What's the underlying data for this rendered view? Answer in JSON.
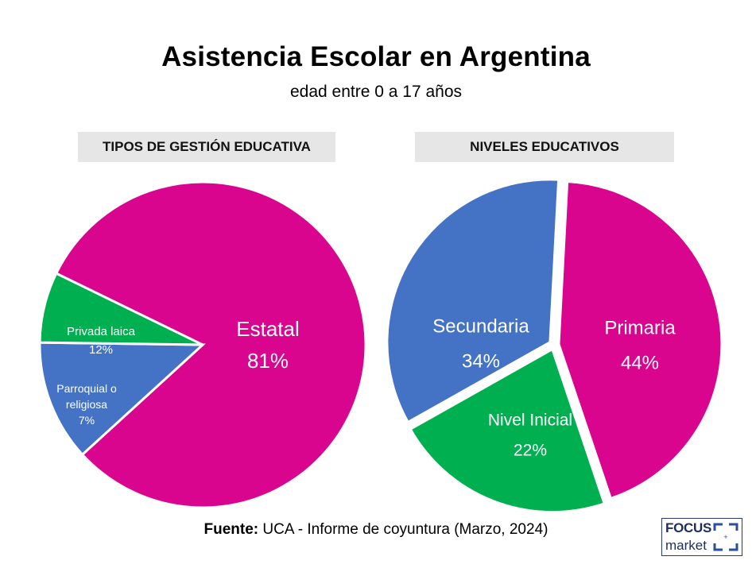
{
  "title": "Asistencia Escolar en Argentina",
  "subtitle": "edad entre 0 a 17 años",
  "source_label": "Fuente:",
  "source_text": "UCA - Informe de coyuntura (Marzo, 2024)",
  "logo": {
    "line1": "FOCUS",
    "line2": "market"
  },
  "colors": {
    "magenta": "#d9058f",
    "blue": "#4472c4",
    "green": "#00b050",
    "header_bg": "#e6e6e6"
  },
  "chart_data": [
    {
      "type": "pie",
      "title": "TIPOS DE GESTIÓN EDUCATIVA",
      "slices": [
        {
          "label": "Estatal",
          "value": 81,
          "value_label": "81%",
          "color": "#d9058f"
        },
        {
          "label": "Privada laica",
          "value": 12,
          "value_label": "12%",
          "color": "#4472c4"
        },
        {
          "label": "Parroquial o religiosa",
          "value": 7,
          "value_label": "7%",
          "color": "#00b050"
        }
      ]
    },
    {
      "type": "pie",
      "title": "NIVELES EDUCATIVOS",
      "slices": [
        {
          "label": "Primaria",
          "value": 44,
          "value_label": "44%",
          "color": "#d9058f"
        },
        {
          "label": "Nivel Inicial",
          "value": 22,
          "value_label": "22%",
          "color": "#00b050"
        },
        {
          "label": "Secundaria",
          "value": 34,
          "value_label": "34%",
          "color": "#4472c4"
        }
      ]
    }
  ]
}
